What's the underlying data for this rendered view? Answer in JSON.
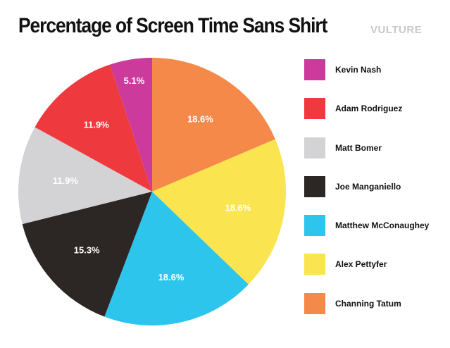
{
  "header": {
    "title": "Percentage of Screen Time Sans Shirt",
    "brand": "VULTURE"
  },
  "chart_data": {
    "type": "pie",
    "title": "Percentage of Screen Time Sans Shirt",
    "start_angle_deg": 0,
    "direction": "clockwise",
    "slices": [
      {
        "label": "Channing Tatum",
        "value": 18.6,
        "display": "18.6%",
        "color": "#f5894a"
      },
      {
        "label": "Alex Pettyfer",
        "value": 18.6,
        "display": "18.6%",
        "color": "#fae44f"
      },
      {
        "label": "Matthew McConaughey",
        "value": 18.6,
        "display": "18.6%",
        "color": "#2ec5ec"
      },
      {
        "label": "Joe Manganiello",
        "value": 15.3,
        "display": "15.3%",
        "color": "#2c2625"
      },
      {
        "label": "Matt Bomer",
        "value": 11.9,
        "display": "11.9%",
        "color": "#d3d3d5"
      },
      {
        "label": "Adam Rodriguez",
        "value": 11.9,
        "display": "11.9%",
        "color": "#ee3a3f"
      },
      {
        "label": "Kevin Nash",
        "value": 5.1,
        "display": "5.1%",
        "color": "#cc3b9b"
      }
    ],
    "legend": {
      "position": "right",
      "items": [
        {
          "label": "Kevin Nash",
          "color": "#cc3b9b"
        },
        {
          "label": "Adam Rodriguez",
          "color": "#ee3a3f"
        },
        {
          "label": "Matt Bomer",
          "color": "#d3d3d5"
        },
        {
          "label": "Joe Manganiello",
          "color": "#2c2625"
        },
        {
          "label": "Matthew McConaughey",
          "color": "#2ec5ec"
        },
        {
          "label": "Alex Pettyfer",
          "color": "#fae44f"
        },
        {
          "label": "Channing Tatum",
          "color": "#f5894a"
        }
      ]
    }
  }
}
